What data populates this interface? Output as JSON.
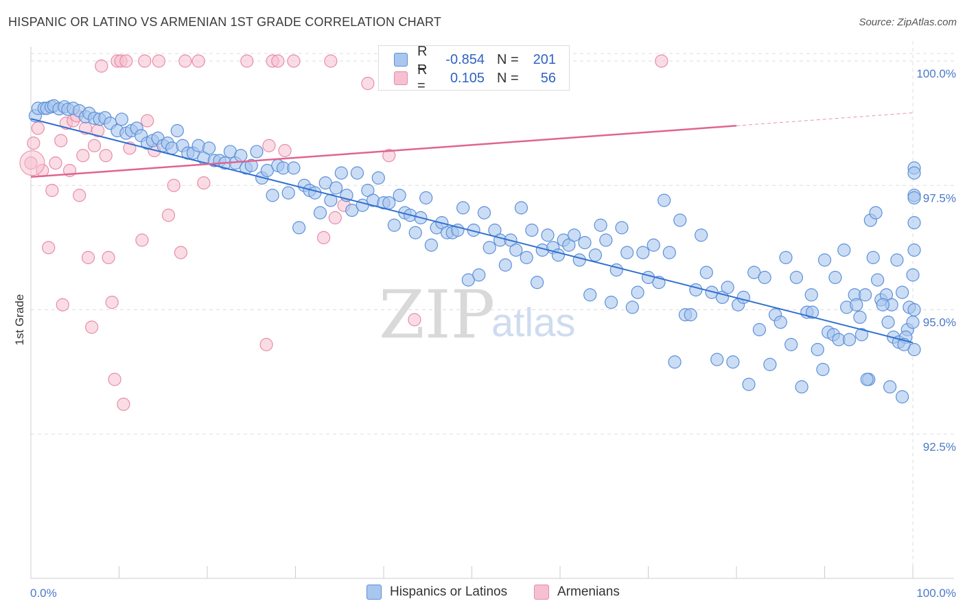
{
  "header": {
    "title": "HISPANIC OR LATINO VS ARMENIAN 1ST GRADE CORRELATION CHART",
    "source": "Source: ZipAtlas.com"
  },
  "watermark": {
    "zip": "ZIP",
    "atlas": "atlas"
  },
  "legend": {
    "rows": [
      {
        "r_label": "R =",
        "r_value": "-0.854",
        "n_label": "N =",
        "n_value": "201"
      },
      {
        "r_label": "R =",
        "r_value": "0.105",
        "n_label": "N =",
        "n_value": "56"
      }
    ]
  },
  "bottom_legend": {
    "series1": "Hispanics or Latinos",
    "series2": "Armenians"
  },
  "colors": {
    "blue_fill": "#a9c6ee",
    "blue_stroke": "#5b8fd8",
    "blue_line": "#2f6fd0",
    "pink_fill": "#f6c0d0",
    "pink_stroke": "#e88aa8",
    "pink_line": "#e0648e",
    "grid": "#dddddd",
    "axis_text": "#4a78c8"
  },
  "chart_data": {
    "type": "scatter",
    "title": "HISPANIC OR LATINO VS ARMENIAN 1ST GRADE CORRELATION CHART",
    "xlabel": "",
    "ylabel": "1st Grade",
    "xlim": [
      0,
      100
    ],
    "ylim": [
      89.6,
      100.4
    ],
    "x_tick_labels": [
      "0.0%",
      "100.0%"
    ],
    "y_ticks": [
      {
        "value": 100.0,
        "label": "100.0%"
      },
      {
        "value": 97.5,
        "label": "97.5%"
      },
      {
        "value": 95.0,
        "label": "95.0%"
      },
      {
        "value": 92.5,
        "label": "92.5%"
      }
    ],
    "series": [
      {
        "name": "Hispanics or Latinos",
        "r": -0.854,
        "n": 201,
        "trend": {
          "x0": 0,
          "y0": 98.84,
          "x1": 100,
          "y1": 94.34
        },
        "points": [
          [
            0.5,
            98.9
          ],
          [
            0.8,
            99.05
          ],
          [
            1.5,
            99.05
          ],
          [
            1.8,
            99.05
          ],
          [
            2.3,
            99.08
          ],
          [
            2.6,
            99.1
          ],
          [
            3.2,
            99.04
          ],
          [
            3.8,
            99.08
          ],
          [
            4.2,
            99.03
          ],
          [
            4.8,
            99.05
          ],
          [
            5.5,
            99.0
          ],
          [
            6.2,
            98.88
          ],
          [
            6.6,
            98.95
          ],
          [
            7.2,
            98.85
          ],
          [
            7.8,
            98.83
          ],
          [
            8.4,
            98.86
          ],
          [
            9.0,
            98.75
          ],
          [
            9.8,
            98.6
          ],
          [
            10.3,
            98.83
          ],
          [
            10.8,
            98.55
          ],
          [
            11.4,
            98.6
          ],
          [
            12.0,
            98.65
          ],
          [
            12.5,
            98.5
          ],
          [
            13.2,
            98.35
          ],
          [
            13.8,
            98.4
          ],
          [
            14.4,
            98.45
          ],
          [
            15.0,
            98.3
          ],
          [
            15.5,
            98.35
          ],
          [
            16.0,
            98.25
          ],
          [
            16.6,
            98.6
          ],
          [
            17.2,
            98.3
          ],
          [
            17.8,
            98.15
          ],
          [
            18.4,
            98.15
          ],
          [
            19.0,
            98.3
          ],
          [
            19.6,
            98.05
          ],
          [
            20.2,
            98.25
          ],
          [
            20.8,
            98.0
          ],
          [
            21.4,
            98.0
          ],
          [
            22.0,
            97.95
          ],
          [
            22.6,
            98.18
          ],
          [
            23.2,
            97.95
          ],
          [
            23.8,
            98.1
          ],
          [
            24.4,
            97.85
          ],
          [
            25.0,
            97.9
          ],
          [
            25.6,
            98.18
          ],
          [
            26.2,
            97.65
          ],
          [
            26.8,
            97.8
          ],
          [
            27.4,
            97.3
          ],
          [
            28.0,
            97.9
          ],
          [
            28.6,
            97.85
          ],
          [
            29.2,
            97.35
          ],
          [
            29.8,
            97.85
          ],
          [
            30.4,
            96.65
          ],
          [
            31.0,
            97.5
          ],
          [
            31.6,
            97.4
          ],
          [
            32.2,
            97.35
          ],
          [
            32.8,
            96.95
          ],
          [
            33.4,
            97.55
          ],
          [
            34.0,
            97.2
          ],
          [
            34.6,
            97.45
          ],
          [
            35.2,
            97.75
          ],
          [
            35.8,
            97.3
          ],
          [
            36.4,
            97.0
          ],
          [
            37.0,
            97.75
          ],
          [
            37.6,
            97.1
          ],
          [
            38.2,
            97.4
          ],
          [
            38.8,
            97.2
          ],
          [
            39.4,
            97.65
          ],
          [
            40.0,
            97.15
          ],
          [
            40.6,
            97.15
          ],
          [
            41.2,
            96.7
          ],
          [
            41.8,
            97.3
          ],
          [
            42.4,
            96.95
          ],
          [
            43.0,
            96.9
          ],
          [
            43.6,
            96.55
          ],
          [
            44.2,
            96.85
          ],
          [
            44.8,
            97.25
          ],
          [
            45.4,
            96.3
          ],
          [
            46.0,
            96.65
          ],
          [
            46.6,
            96.75
          ],
          [
            47.2,
            96.55
          ],
          [
            47.8,
            96.55
          ],
          [
            48.4,
            96.6
          ],
          [
            49.0,
            97.05
          ],
          [
            49.6,
            95.6
          ],
          [
            50.2,
            96.6
          ],
          [
            50.8,
            95.7
          ],
          [
            51.4,
            96.95
          ],
          [
            52.0,
            96.25
          ],
          [
            52.6,
            96.6
          ],
          [
            53.2,
            96.4
          ],
          [
            53.8,
            95.9
          ],
          [
            54.4,
            96.4
          ],
          [
            55.0,
            96.2
          ],
          [
            55.6,
            97.05
          ],
          [
            56.2,
            96.05
          ],
          [
            56.8,
            96.6
          ],
          [
            57.4,
            95.55
          ],
          [
            58.0,
            96.2
          ],
          [
            58.6,
            96.5
          ],
          [
            59.2,
            96.25
          ],
          [
            59.8,
            96.1
          ],
          [
            60.4,
            96.4
          ],
          [
            61.0,
            96.3
          ],
          [
            61.6,
            96.5
          ],
          [
            62.2,
            96.0
          ],
          [
            62.8,
            96.35
          ],
          [
            63.4,
            95.3
          ],
          [
            64.0,
            96.1
          ],
          [
            64.6,
            96.7
          ],
          [
            65.2,
            96.4
          ],
          [
            65.8,
            95.15
          ],
          [
            66.4,
            95.8
          ],
          [
            67.0,
            96.65
          ],
          [
            67.6,
            96.15
          ],
          [
            68.2,
            95.05
          ],
          [
            68.8,
            95.35
          ],
          [
            69.4,
            96.15
          ],
          [
            70.0,
            95.65
          ],
          [
            70.6,
            96.3
          ],
          [
            71.2,
            95.55
          ],
          [
            71.8,
            97.2
          ],
          [
            72.4,
            96.15
          ],
          [
            73.0,
            93.95
          ],
          [
            73.6,
            96.8
          ],
          [
            74.2,
            94.9
          ],
          [
            74.8,
            94.9
          ],
          [
            75.4,
            95.4
          ],
          [
            76.0,
            96.5
          ],
          [
            76.6,
            95.75
          ],
          [
            77.2,
            95.35
          ],
          [
            77.8,
            94.0
          ],
          [
            78.4,
            95.25
          ],
          [
            79.0,
            95.45
          ],
          [
            79.6,
            93.95
          ],
          [
            80.2,
            95.1
          ],
          [
            80.8,
            95.25
          ],
          [
            81.4,
            93.5
          ],
          [
            82.0,
            95.75
          ],
          [
            82.6,
            94.6
          ],
          [
            83.2,
            95.65
          ],
          [
            83.8,
            93.9
          ],
          [
            84.4,
            94.9
          ],
          [
            85.0,
            94.75
          ],
          [
            85.6,
            96.05
          ],
          [
            86.2,
            94.3
          ],
          [
            86.8,
            95.65
          ],
          [
            87.4,
            93.45
          ],
          [
            88.0,
            94.95
          ],
          [
            88.6,
            94.95
          ],
          [
            89.2,
            94.2
          ],
          [
            89.8,
            93.8
          ],
          [
            90.4,
            94.55
          ],
          [
            91.0,
            94.5
          ],
          [
            91.6,
            94.4
          ],
          [
            92.2,
            96.2
          ],
          [
            92.8,
            94.4
          ],
          [
            93.4,
            95.3
          ],
          [
            94.0,
            94.85
          ],
          [
            94.6,
            95.3
          ],
          [
            95.2,
            96.8
          ],
          [
            95.8,
            96.95
          ],
          [
            96.4,
            95.2
          ],
          [
            97.0,
            95.3
          ],
          [
            97.6,
            95.1
          ],
          [
            98.2,
            96.0
          ],
          [
            98.8,
            93.25
          ],
          [
            99.4,
            94.6
          ],
          [
            100.0,
            95.7
          ],
          [
            88.5,
            95.3
          ],
          [
            90.0,
            96.0
          ],
          [
            91.2,
            95.65
          ],
          [
            92.5,
            95.05
          ],
          [
            93.6,
            95.1
          ],
          [
            94.2,
            94.5
          ],
          [
            95.0,
            93.6
          ],
          [
            95.5,
            96.05
          ],
          [
            96.0,
            95.6
          ],
          [
            96.6,
            95.1
          ],
          [
            97.2,
            94.75
          ],
          [
            97.8,
            94.45
          ],
          [
            98.4,
            94.35
          ],
          [
            98.8,
            95.35
          ],
          [
            99.2,
            94.45
          ],
          [
            99.6,
            95.05
          ],
          [
            100.0,
            94.75
          ],
          [
            100.4,
            95.0
          ],
          [
            100.8,
            94.2
          ],
          [
            101.2,
            96.75
          ],
          [
            101.6,
            97.3
          ],
          [
            102.0,
            97.85
          ],
          [
            102.4,
            97.75
          ],
          [
            102.8,
            97.25
          ],
          [
            103.2,
            96.2
          ],
          [
            97.4,
            93.45
          ],
          [
            99.0,
            94.3
          ],
          [
            94.8,
            93.6
          ]
        ]
      },
      {
        "name": "Armenians",
        "r": 0.105,
        "n": 56,
        "trend": {
          "x0": 0,
          "y0": 97.67,
          "x1": 80,
          "y1": 98.7,
          "dash_to_x": 100,
          "dash_to_y": 98.96
        },
        "points": [
          [
            0.0,
            97.95
          ],
          [
            0.3,
            98.35
          ],
          [
            0.8,
            98.65
          ],
          [
            1.3,
            97.8
          ],
          [
            2.0,
            96.25
          ],
          [
            2.4,
            97.4
          ],
          [
            2.8,
            97.95
          ],
          [
            3.4,
            98.4
          ],
          [
            3.6,
            95.1
          ],
          [
            4.0,
            98.75
          ],
          [
            4.4,
            97.8
          ],
          [
            4.8,
            98.8
          ],
          [
            5.2,
            98.9
          ],
          [
            5.5,
            97.3
          ],
          [
            5.9,
            98.1
          ],
          [
            6.2,
            98.65
          ],
          [
            6.5,
            96.05
          ],
          [
            6.9,
            94.65
          ],
          [
            7.2,
            98.3
          ],
          [
            7.6,
            98.6
          ],
          [
            8.0,
            99.9
          ],
          [
            8.5,
            98.1
          ],
          [
            8.8,
            96.05
          ],
          [
            9.2,
            95.15
          ],
          [
            9.5,
            93.6
          ],
          [
            9.8,
            100.0
          ],
          [
            10.2,
            100.0
          ],
          [
            10.5,
            93.1
          ],
          [
            10.8,
            100.0
          ],
          [
            11.2,
            98.25
          ],
          [
            12.6,
            96.4
          ],
          [
            12.9,
            100.0
          ],
          [
            13.2,
            98.8
          ],
          [
            14.0,
            98.2
          ],
          [
            14.5,
            100.0
          ],
          [
            15.6,
            96.9
          ],
          [
            16.2,
            97.5
          ],
          [
            17.0,
            96.15
          ],
          [
            17.5,
            100.0
          ],
          [
            19.0,
            100.0
          ],
          [
            19.6,
            97.55
          ],
          [
            24.5,
            100.0
          ],
          [
            26.7,
            94.3
          ],
          [
            27.0,
            98.3
          ],
          [
            27.4,
            100.0
          ],
          [
            28.0,
            100.0
          ],
          [
            28.8,
            98.2
          ],
          [
            29.8,
            100.0
          ],
          [
            33.2,
            96.45
          ],
          [
            34.0,
            100.0
          ],
          [
            34.5,
            96.85
          ],
          [
            35.5,
            97.1
          ],
          [
            38.2,
            99.55
          ],
          [
            40.6,
            98.1
          ],
          [
            43.5,
            94.8
          ],
          [
            71.5,
            100.0
          ]
        ]
      }
    ]
  }
}
